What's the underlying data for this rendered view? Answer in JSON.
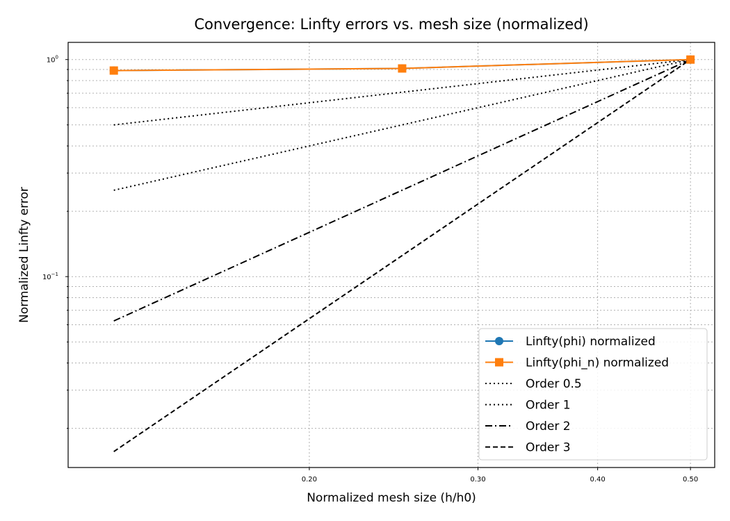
{
  "chart_data": {
    "type": "line",
    "title": "Convergence: Linfty errors vs. mesh size (normalized)",
    "xlabel": "Normalized mesh size (h/h0)",
    "ylabel": "Normalized Linfty error",
    "xscale": "log",
    "yscale": "log",
    "xlim": [
      0.112,
      0.53
    ],
    "ylim": [
      0.0132,
      1.2
    ],
    "x_ticks": [
      {
        "value": 0.2,
        "label": "0.20"
      },
      {
        "value": 0.3,
        "label": "0.30"
      },
      {
        "value": 0.4,
        "label": "0.40"
      },
      {
        "value": 0.5,
        "label": "0.50"
      }
    ],
    "y_ticks": [
      {
        "value": 1.0,
        "base": "10",
        "exp": "0"
      },
      {
        "value": 0.1,
        "base": "10",
        "exp": "−1"
      }
    ],
    "grid": true,
    "legend_position": "bottom-right",
    "series": [
      {
        "name": "Linfty(phi) normalized",
        "color": "#1f77b4",
        "marker": "circle",
        "style": "solid",
        "x": [
          0.125,
          0.25,
          0.5
        ],
        "y": [
          0.89,
          0.91,
          1.0
        ]
      },
      {
        "name": "Linfty(phi_n) normalized",
        "color": "#ff7f0e",
        "marker": "square",
        "style": "solid",
        "x": [
          0.125,
          0.25,
          0.5
        ],
        "y": [
          0.89,
          0.91,
          1.0
        ]
      },
      {
        "name": "Order 0.5",
        "color": "#000000",
        "marker": "none",
        "style": "dotted",
        "x": [
          0.125,
          0.5
        ],
        "y": [
          0.5,
          1.0
        ]
      },
      {
        "name": "Order 1",
        "color": "#000000",
        "marker": "none",
        "style": "dotted",
        "x": [
          0.125,
          0.5
        ],
        "y": [
          0.25,
          1.0
        ]
      },
      {
        "name": "Order 2",
        "color": "#000000",
        "marker": "none",
        "style": "dashdot",
        "x": [
          0.125,
          0.5
        ],
        "y": [
          0.0625,
          1.0
        ]
      },
      {
        "name": "Order 3",
        "color": "#000000",
        "marker": "none",
        "style": "dashed",
        "x": [
          0.125,
          0.5
        ],
        "y": [
          0.015625,
          1.0
        ]
      }
    ]
  }
}
